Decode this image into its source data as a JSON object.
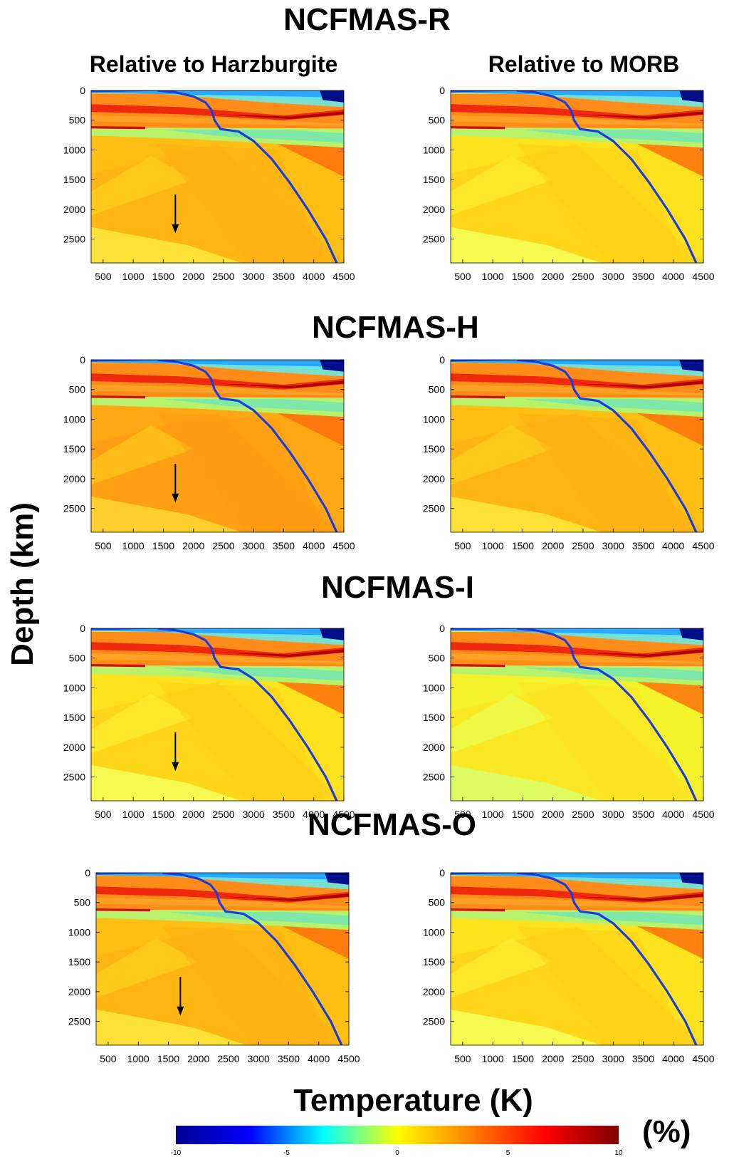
{
  "titles": {
    "figure_title": "NCFMAS-R",
    "col_left": "Relative to Harzburgite",
    "col_right": "Relative to MORB",
    "ylabel": "Depth (km)",
    "xlabel": "Temperature (K)",
    "colorbar_unit": "(%)"
  },
  "chart_data": [
    {
      "type": "heatmap",
      "model": "NCFMAS-R",
      "reference": "Relative to Harzburgite",
      "xlabel": "Temperature (K)",
      "ylabel": "Depth (km)",
      "xlim": [
        300,
        4500
      ],
      "ylim": [
        0,
        2900
      ],
      "arrow": true,
      "tone": "orange"
    },
    {
      "type": "heatmap",
      "model": "NCFMAS-R",
      "reference": "Relative to MORB",
      "xlabel": "Temperature (K)",
      "ylabel": "Depth (km)",
      "xlim": [
        300,
        4500
      ],
      "ylim": [
        0,
        2900
      ],
      "arrow": false,
      "tone": "yellow"
    },
    {
      "type": "heatmap",
      "model": "NCFMAS-H",
      "reference": "Relative to Harzburgite",
      "xlabel": "Temperature (K)",
      "ylabel": "Depth (km)",
      "xlim": [
        300,
        4500
      ],
      "ylim": [
        0,
        2900
      ],
      "arrow": true,
      "tone": "deep-orange"
    },
    {
      "type": "heatmap",
      "model": "NCFMAS-H",
      "reference": "Relative to MORB",
      "xlabel": "Temperature (K)",
      "ylabel": "Depth (km)",
      "xlim": [
        300,
        4500
      ],
      "ylim": [
        0,
        2900
      ],
      "arrow": false,
      "tone": "orange"
    },
    {
      "type": "heatmap",
      "model": "NCFMAS-I",
      "reference": "Relative to Harzburgite",
      "xlabel": "Temperature (K)",
      "ylabel": "Depth (km)",
      "xlim": [
        300,
        4500
      ],
      "ylim": [
        0,
        2900
      ],
      "arrow": true,
      "tone": "yellow"
    },
    {
      "type": "heatmap",
      "model": "NCFMAS-I",
      "reference": "Relative to MORB",
      "xlabel": "Temperature (K)",
      "ylabel": "Depth (km)",
      "xlim": [
        300,
        4500
      ],
      "ylim": [
        0,
        2900
      ],
      "arrow": false,
      "tone": "pale-yellow"
    },
    {
      "type": "heatmap",
      "model": "NCFMAS-O",
      "reference": "Relative to Harzburgite",
      "xlabel": "Temperature (K)",
      "ylabel": "Depth (km)",
      "xlim": [
        300,
        4500
      ],
      "ylim": [
        0,
        2900
      ],
      "arrow": true,
      "tone": "orange"
    },
    {
      "type": "heatmap",
      "model": "NCFMAS-O",
      "reference": "Relative to MORB",
      "xlabel": "Temperature (K)",
      "ylabel": "Depth (km)",
      "xlim": [
        300,
        4500
      ],
      "ylim": [
        0,
        2900
      ],
      "arrow": false,
      "tone": "yellow"
    }
  ],
  "panel_titles": [
    "NCFMAS-R",
    "NCFMAS-H",
    "NCFMAS-I",
    "NCFMAS-O"
  ],
  "x_ticks": [
    500,
    1000,
    1500,
    2000,
    2500,
    3000,
    3500,
    4000,
    4500
  ],
  "y_ticks": [
    0,
    500,
    1000,
    1500,
    2000,
    2500
  ],
  "geotherm": {
    "temperature": [
      1400,
      1700,
      2000,
      2200,
      2300,
      2350,
      2450,
      2750,
      3000,
      3300,
      3600,
      3900,
      4200,
      4380
    ],
    "depth": [
      0,
      30,
      100,
      200,
      330,
      500,
      650,
      690,
      850,
      1150,
      1550,
      2000,
      2500,
      2900
    ],
    "color": "#1e3cdc"
  },
  "colorbar": {
    "ticks": [
      "-10",
      "-5",
      "0",
      "5",
      "10"
    ],
    "stops": [
      "#00008f",
      "#0000ff",
      "#00ffff",
      "#ffff00",
      "#ff7f00",
      "#ff0000",
      "#7f0000"
    ]
  }
}
